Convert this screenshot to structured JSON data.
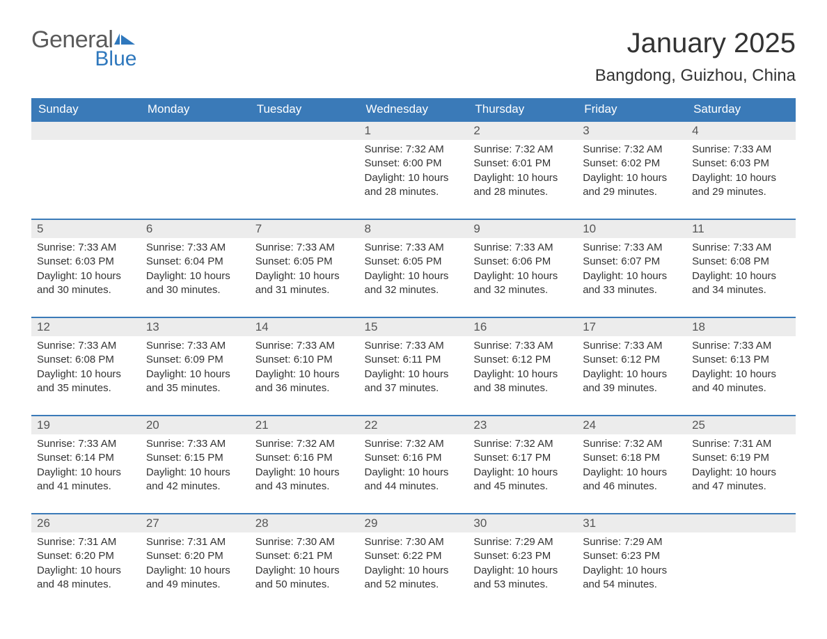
{
  "logo": {
    "part1": "General",
    "part2": "Blue"
  },
  "title": "January 2025",
  "location": "Bangdong, Guizhou, China",
  "colors": {
    "header_bg": "#3a7ab8",
    "header_text": "#ffffff",
    "daynum_bg": "#ececec",
    "daynum_border": "#3a7ab8",
    "body_text": "#333333",
    "logo_gray": "#5a5a5a",
    "logo_blue": "#2f78bd"
  },
  "weekdays": [
    "Sunday",
    "Monday",
    "Tuesday",
    "Wednesday",
    "Thursday",
    "Friday",
    "Saturday"
  ],
  "weeks": [
    [
      null,
      null,
      null,
      {
        "d": "1",
        "sr": "7:32 AM",
        "ss": "6:00 PM",
        "dl": "10 hours and 28 minutes."
      },
      {
        "d": "2",
        "sr": "7:32 AM",
        "ss": "6:01 PM",
        "dl": "10 hours and 28 minutes."
      },
      {
        "d": "3",
        "sr": "7:32 AM",
        "ss": "6:02 PM",
        "dl": "10 hours and 29 minutes."
      },
      {
        "d": "4",
        "sr": "7:33 AM",
        "ss": "6:03 PM",
        "dl": "10 hours and 29 minutes."
      }
    ],
    [
      {
        "d": "5",
        "sr": "7:33 AM",
        "ss": "6:03 PM",
        "dl": "10 hours and 30 minutes."
      },
      {
        "d": "6",
        "sr": "7:33 AM",
        "ss": "6:04 PM",
        "dl": "10 hours and 30 minutes."
      },
      {
        "d": "7",
        "sr": "7:33 AM",
        "ss": "6:05 PM",
        "dl": "10 hours and 31 minutes."
      },
      {
        "d": "8",
        "sr": "7:33 AM",
        "ss": "6:05 PM",
        "dl": "10 hours and 32 minutes."
      },
      {
        "d": "9",
        "sr": "7:33 AM",
        "ss": "6:06 PM",
        "dl": "10 hours and 32 minutes."
      },
      {
        "d": "10",
        "sr": "7:33 AM",
        "ss": "6:07 PM",
        "dl": "10 hours and 33 minutes."
      },
      {
        "d": "11",
        "sr": "7:33 AM",
        "ss": "6:08 PM",
        "dl": "10 hours and 34 minutes."
      }
    ],
    [
      {
        "d": "12",
        "sr": "7:33 AM",
        "ss": "6:08 PM",
        "dl": "10 hours and 35 minutes."
      },
      {
        "d": "13",
        "sr": "7:33 AM",
        "ss": "6:09 PM",
        "dl": "10 hours and 35 minutes."
      },
      {
        "d": "14",
        "sr": "7:33 AM",
        "ss": "6:10 PM",
        "dl": "10 hours and 36 minutes."
      },
      {
        "d": "15",
        "sr": "7:33 AM",
        "ss": "6:11 PM",
        "dl": "10 hours and 37 minutes."
      },
      {
        "d": "16",
        "sr": "7:33 AM",
        "ss": "6:12 PM",
        "dl": "10 hours and 38 minutes."
      },
      {
        "d": "17",
        "sr": "7:33 AM",
        "ss": "6:12 PM",
        "dl": "10 hours and 39 minutes."
      },
      {
        "d": "18",
        "sr": "7:33 AM",
        "ss": "6:13 PM",
        "dl": "10 hours and 40 minutes."
      }
    ],
    [
      {
        "d": "19",
        "sr": "7:33 AM",
        "ss": "6:14 PM",
        "dl": "10 hours and 41 minutes."
      },
      {
        "d": "20",
        "sr": "7:33 AM",
        "ss": "6:15 PM",
        "dl": "10 hours and 42 minutes."
      },
      {
        "d": "21",
        "sr": "7:32 AM",
        "ss": "6:16 PM",
        "dl": "10 hours and 43 minutes."
      },
      {
        "d": "22",
        "sr": "7:32 AM",
        "ss": "6:16 PM",
        "dl": "10 hours and 44 minutes."
      },
      {
        "d": "23",
        "sr": "7:32 AM",
        "ss": "6:17 PM",
        "dl": "10 hours and 45 minutes."
      },
      {
        "d": "24",
        "sr": "7:32 AM",
        "ss": "6:18 PM",
        "dl": "10 hours and 46 minutes."
      },
      {
        "d": "25",
        "sr": "7:31 AM",
        "ss": "6:19 PM",
        "dl": "10 hours and 47 minutes."
      }
    ],
    [
      {
        "d": "26",
        "sr": "7:31 AM",
        "ss": "6:20 PM",
        "dl": "10 hours and 48 minutes."
      },
      {
        "d": "27",
        "sr": "7:31 AM",
        "ss": "6:20 PM",
        "dl": "10 hours and 49 minutes."
      },
      {
        "d": "28",
        "sr": "7:30 AM",
        "ss": "6:21 PM",
        "dl": "10 hours and 50 minutes."
      },
      {
        "d": "29",
        "sr": "7:30 AM",
        "ss": "6:22 PM",
        "dl": "10 hours and 52 minutes."
      },
      {
        "d": "30",
        "sr": "7:29 AM",
        "ss": "6:23 PM",
        "dl": "10 hours and 53 minutes."
      },
      {
        "d": "31",
        "sr": "7:29 AM",
        "ss": "6:23 PM",
        "dl": "10 hours and 54 minutes."
      },
      null
    ]
  ],
  "labels": {
    "sunrise": "Sunrise:",
    "sunset": "Sunset:",
    "daylight": "Daylight:"
  }
}
